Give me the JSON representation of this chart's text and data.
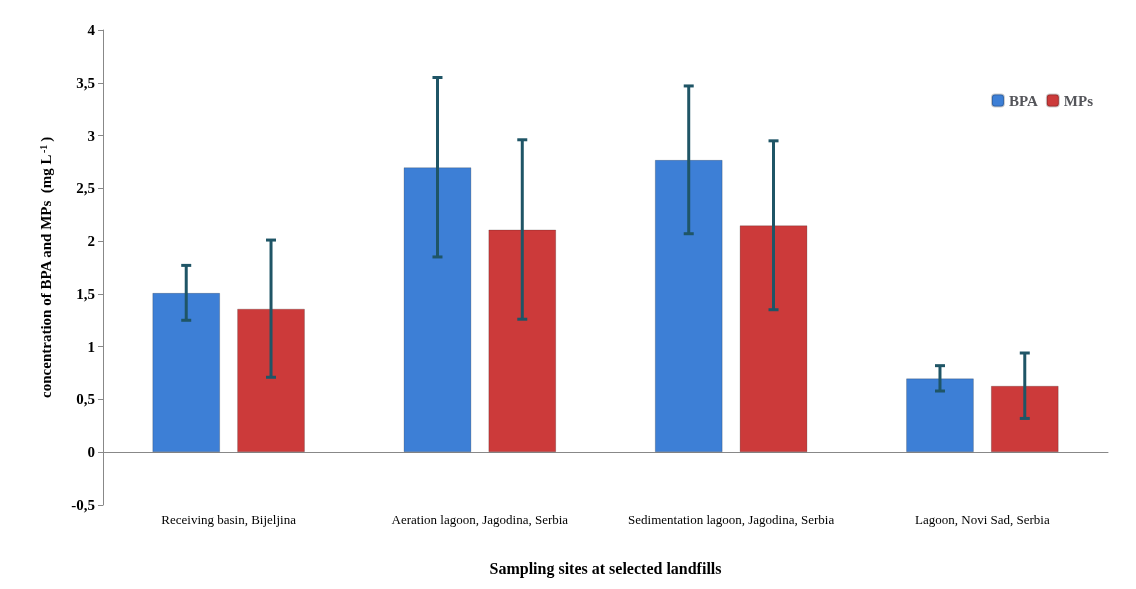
{
  "chart_data": {
    "type": "bar",
    "xlabel": "Sampling sites at selected landfills",
    "ylabel": "concentration of BPA and MPs  (mg L$^{-1}$)",
    "categories": [
      "Receiving basin, Bijeljina",
      "Aeration lagoon, Jagodina, Serbia",
      "Sedimentation lagoon, Jagodina, Serbia",
      "Lagoon, Novi Sad, Serbia"
    ],
    "series": [
      {
        "name": "BPA",
        "color": "#3d7fd6",
        "values": [
          1.51,
          2.7,
          2.77,
          0.7
        ],
        "errors": [
          0.26,
          0.85,
          0.7,
          0.12
        ]
      },
      {
        "name": "MPs",
        "color": "#cc3a3a",
        "values": [
          1.36,
          2.11,
          2.15,
          0.63
        ],
        "errors": [
          0.65,
          0.85,
          0.8,
          0.31
        ]
      }
    ],
    "ylim": [
      -0.5,
      4
    ],
    "yticks": [
      {
        "value": -0.5,
        "label": "-0,5"
      },
      0,
      {
        "value": 0.5,
        "label": "0,5"
      },
      1,
      {
        "value": 1.5,
        "label": "1,5"
      },
      2,
      {
        "value": 2.5,
        "label": "2,5"
      },
      3,
      {
        "value": 3.5,
        "label": "3,5"
      },
      4
    ],
    "legend": "top right"
  }
}
